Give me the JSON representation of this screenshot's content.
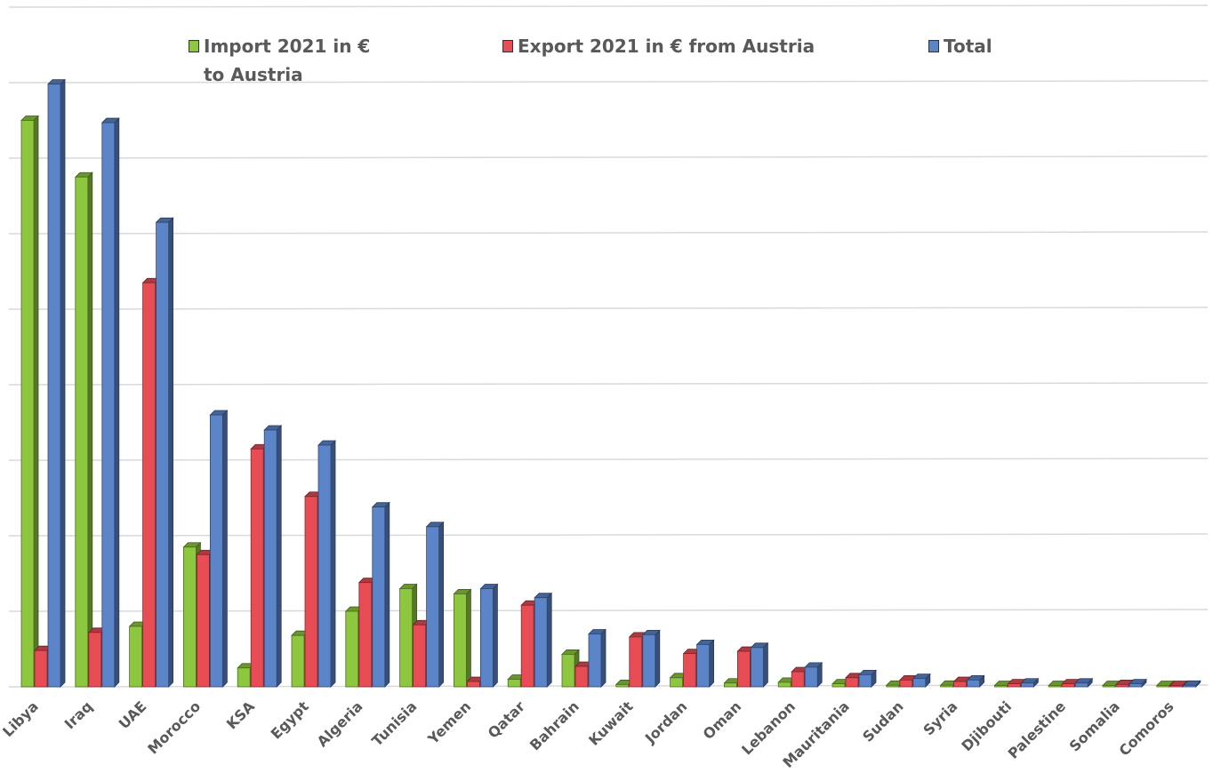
{
  "chart_data": {
    "type": "bar",
    "title": "",
    "xlabel": "",
    "ylabel": "",
    "ylim": [
      0,
      8
    ],
    "grid": true,
    "legend_position": "top",
    "categories": [
      "Libya",
      "Iraq",
      "UAE",
      "Morocco",
      "KSA",
      "Egypt",
      "Algeria",
      "Tunisia",
      "Yemen",
      "Qatar",
      "Bahrain",
      "Kuwait",
      "Jordan",
      "Oman",
      "Lebanon",
      "Mauritania",
      "Sudan",
      "Syria",
      "Djibouti",
      "Palestine",
      "Somalia",
      "Comoros"
    ],
    "series": [
      {
        "name": "Import 2021 in €\nto Austria",
        "color": "#8dc63f",
        "values": [
          7.5,
          6.75,
          0.8,
          1.85,
          0.25,
          0.68,
          1.0,
          1.3,
          1.23,
          0.1,
          0.43,
          0.03,
          0.12,
          0.05,
          0.06,
          0.04,
          0.02,
          0.02,
          0.01,
          0.01,
          0.01,
          0.01
        ]
      },
      {
        "name": "Export 2021 in € from Austria",
        "color": "#e84c55",
        "values": [
          0.48,
          0.72,
          5.35,
          1.75,
          3.15,
          2.52,
          1.38,
          0.82,
          0.07,
          1.08,
          0.27,
          0.66,
          0.44,
          0.47,
          0.2,
          0.12,
          0.09,
          0.07,
          0.04,
          0.04,
          0.03,
          0.01
        ]
      },
      {
        "name": "Total",
        "color": "#5b84c9",
        "values": [
          7.98,
          7.47,
          6.15,
          3.6,
          3.4,
          3.2,
          2.38,
          2.12,
          1.3,
          1.18,
          0.7,
          0.69,
          0.56,
          0.52,
          0.26,
          0.16,
          0.11,
          0.09,
          0.05,
          0.05,
          0.04,
          0.02
        ]
      }
    ]
  }
}
